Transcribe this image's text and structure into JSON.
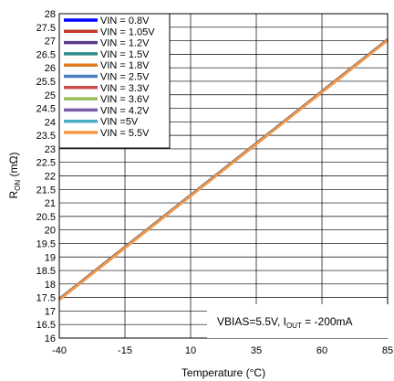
{
  "chart_data": {
    "type": "line",
    "xlabel": "Temperature (°C)",
    "ylabel": {
      "main": "R",
      "sub": "ON",
      "tail": " (mΩ)"
    },
    "xlim": [
      -40,
      85
    ],
    "ylim": [
      16,
      28
    ],
    "x_ticks": [
      -40,
      -15,
      10,
      35,
      60,
      85
    ],
    "x_ticks_text": [
      "-40",
      "-15",
      "10",
      "35",
      "60",
      "85"
    ],
    "y_ticks_text": [
      "16",
      "16.5",
      "17",
      "17.5",
      "18",
      "18.5",
      "19",
      "19.5",
      "20",
      "20.5",
      "21",
      "21.5",
      "22",
      "22.5",
      "23",
      "23.5",
      "24",
      "24.5",
      "25",
      "25.5",
      "26",
      "26.5",
      "27",
      "27.5",
      "28"
    ],
    "grid": true,
    "legend_position": "top-left",
    "annotation": {
      "pre": "VBIAS=5.5V, I",
      "sub": "OUT",
      "post": " = -200mA"
    },
    "x": [
      -40,
      85
    ],
    "series": [
      {
        "name": "VIN = 0.8V",
        "color": "#0000ff",
        "y": [
          17.45,
          27.05
        ]
      },
      {
        "name": "VIN = 1.05V",
        "color": "#c0392b",
        "y": [
          17.45,
          27.05
        ]
      },
      {
        "name": "VIN = 1.2V",
        "color": "#5b3a8c",
        "y": [
          17.45,
          27.05
        ]
      },
      {
        "name": "VIN = 1.5V",
        "color": "#2e8b8b",
        "y": [
          17.45,
          27.05
        ]
      },
      {
        "name": "VIN = 1.8V",
        "color": "#e07b20",
        "y": [
          17.45,
          27.05
        ]
      },
      {
        "name": "VIN = 2.5V",
        "color": "#4a7fc1",
        "y": [
          17.43,
          27.03
        ]
      },
      {
        "name": "VIN = 3.3V",
        "color": "#c84a4a",
        "y": [
          17.43,
          27.03
        ]
      },
      {
        "name": "VIN = 3.6V",
        "color": "#9bbb59",
        "y": [
          17.42,
          27.02
        ]
      },
      {
        "name": "VIN = 4.2V",
        "color": "#7b5ea7",
        "y": [
          17.42,
          27.02
        ]
      },
      {
        "name": "VIN =5V",
        "color": "#4bacc6",
        "y": [
          17.42,
          27.02
        ]
      },
      {
        "name": "VIN = 5.5V",
        "color": "#f79646",
        "y": [
          17.41,
          27.01
        ]
      }
    ]
  }
}
